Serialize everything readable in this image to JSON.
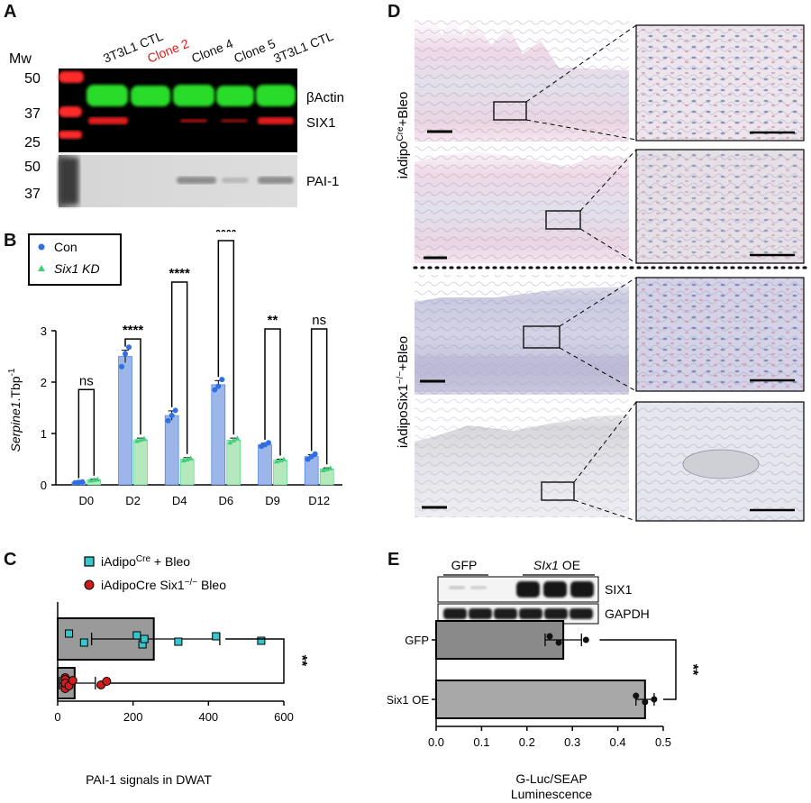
{
  "panels": {
    "A": "A",
    "B": "B",
    "C": "C",
    "D": "D",
    "E": "E"
  },
  "colors": {
    "green_band": "#2bdc2b",
    "red_band": "#e31a1a",
    "marker_red": "#ff2a2a",
    "con_blue": "#2f6fe0",
    "bar_blue": "#9cb6ea",
    "kd_green": "#3fd07a",
    "bar_green": "#b5e9bd",
    "cyan_square": "#36c6cc",
    "bar_gray": "#9a9a9a",
    "pink_stain": "#d88fb0",
    "purple_stain": "#6b6fb0"
  },
  "panel_a": {
    "mw_label": "Mw",
    "lane_labels": [
      "3T3L1 CTL",
      "Clone 2",
      "Clone 4",
      "Clone 5",
      "3T3L1 CTL"
    ],
    "lane_label_colors": [
      "#111111",
      "#e31a1a",
      "#111111",
      "#111111",
      "#111111"
    ],
    "mw_top": [
      "50",
      "37",
      "25"
    ],
    "mw_bottom": [
      "50",
      "37"
    ],
    "band_labels": [
      "βActin",
      "SIX1",
      "PAI-1"
    ]
  },
  "panel_d": {
    "group1_label": "iAdipo",
    "group1_sup": "Cre",
    "group1_suffix": "+Bleo",
    "group2_label": "iAdipoSix1",
    "group2_sup": "−/−",
    "group2_suffix": "+Bleo"
  },
  "chart_data": [
    {
      "id": "B",
      "type": "bar",
      "categories": [
        "D0",
        "D2",
        "D4",
        "D6",
        "D9",
        "D12"
      ],
      "series": [
        {
          "name": "Con",
          "values": [
            0.05,
            2.5,
            1.35,
            1.95,
            0.78,
            0.55
          ],
          "errors": [
            0.01,
            0.12,
            0.09,
            0.08,
            0.03,
            0.04
          ],
          "points": [
            [
              0.04,
              0.05,
              0.06
            ],
            [
              2.3,
              2.55,
              2.68
            ],
            [
              1.25,
              1.35,
              1.45
            ],
            [
              1.85,
              1.92,
              2.05
            ],
            [
              0.75,
              0.78,
              0.82
            ],
            [
              0.5,
              0.55,
              0.6
            ]
          ]
        },
        {
          "name": "Six1 KD",
          "values": [
            0.1,
            0.88,
            0.5,
            0.87,
            0.48,
            0.31
          ],
          "errors": [
            0.01,
            0.03,
            0.03,
            0.04,
            0.02,
            0.02
          ],
          "points": [
            [
              0.09,
              0.1,
              0.11
            ],
            [
              0.86,
              0.88,
              0.9
            ],
            [
              0.48,
              0.5,
              0.52
            ],
            [
              0.83,
              0.87,
              0.91
            ],
            [
              0.46,
              0.48,
              0.5
            ],
            [
              0.29,
              0.31,
              0.33
            ]
          ]
        }
      ],
      "significance": [
        "ns",
        "****",
        "****",
        "****",
        "**",
        "ns"
      ],
      "yticks": [
        "0",
        "1",
        "2",
        "3"
      ],
      "ylim": [
        0,
        3
      ],
      "ylabel_main": "Serpine1",
      "ylabel_rest": ".Tbp",
      "ylabel_sup": "-1",
      "legend_placement": "top-left"
    },
    {
      "id": "C",
      "type": "bar",
      "orientation": "horizontal",
      "series": [
        {
          "name": "iAdipo",
          "name_sup": "Cre",
          "name_suffix": " + Bleo",
          "value": 255,
          "error_low": 90,
          "error_high": 430,
          "points": [
            30,
            70,
            210,
            225,
            230,
            320,
            420,
            540
          ]
        },
        {
          "name": "iAdipoCre Six1",
          "name_sup": "−/−",
          "name_suffix": " Bleo",
          "value": 45,
          "error_low": 5,
          "error_high": 100,
          "points": [
            20,
            20,
            20,
            20,
            20,
            30,
            40,
            115,
            130
          ]
        }
      ],
      "xticks": [
        "0",
        "200",
        "400",
        "600"
      ],
      "xlim": [
        0,
        600
      ],
      "xlabel": "PAI-1 signals in DWAT",
      "significance": "**"
    },
    {
      "id": "E",
      "type": "bar",
      "orientation": "horizontal",
      "categories": [
        "GFP",
        "Six1 OE"
      ],
      "values": [
        0.28,
        0.46
      ],
      "errors": [
        0.04,
        0.02
      ],
      "points": [
        [
          0.25,
          0.27,
          0.33
        ],
        [
          0.44,
          0.46,
          0.48
        ]
      ],
      "xticks": [
        "0.0",
        "0.1",
        "0.2",
        "0.3",
        "0.4",
        "0.5"
      ],
      "xlim": [
        0,
        0.5
      ],
      "xlabel_line1": "G-Luc/SEAP",
      "xlabel_line2": "Luminescence",
      "significance": "**",
      "blot_groups": [
        "GFP",
        "SIx1 OE"
      ],
      "blot_labels": [
        "SIX1",
        "GAPDH"
      ]
    }
  ]
}
